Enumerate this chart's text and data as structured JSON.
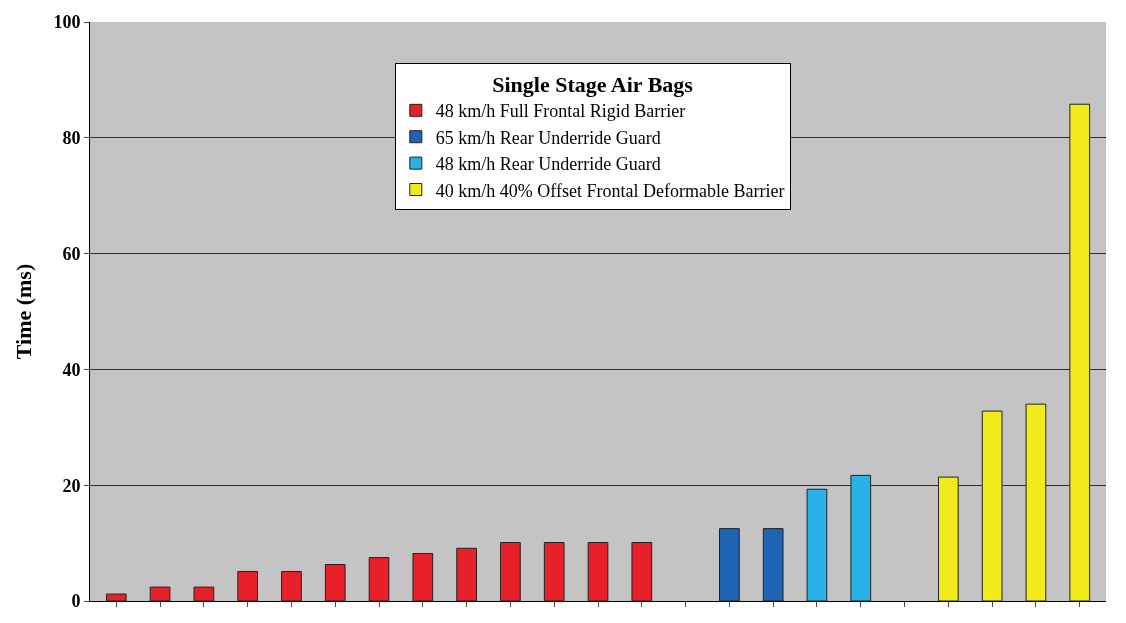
{
  "chart_data": {
    "type": "bar",
    "ylabel": "Time (ms)",
    "legend_title": "Single Stage Air Bags",
    "categories": [
      null,
      null,
      null,
      null,
      null,
      null,
      null,
      null,
      null,
      null,
      null,
      null,
      null,
      null,
      null,
      null,
      null,
      null,
      null,
      null,
      null,
      null,
      null
    ],
    "series": [
      {
        "name": "48 km/h Full Frontal Rigid Barrier",
        "color": "#e8202a",
        "values": [
          1.2,
          2.4,
          2.4,
          5.1,
          5.1,
          6.3,
          7.5,
          8.2,
          9.1,
          10.1,
          10.1,
          10.1,
          10.1,
          null,
          null,
          null,
          null,
          null,
          null,
          null,
          null,
          null,
          null
        ]
      },
      {
        "name": "65 km/h Rear Underride Guard",
        "color": "#1f64b4",
        "values": [
          null,
          null,
          null,
          null,
          null,
          null,
          null,
          null,
          null,
          null,
          null,
          null,
          null,
          null,
          12.5,
          12.5,
          null,
          null,
          null,
          null,
          null,
          null,
          null
        ]
      },
      {
        "name": "48 km/h Rear Underride Guard",
        "color": "#29b2e8",
        "values": [
          null,
          null,
          null,
          null,
          null,
          null,
          null,
          null,
          null,
          null,
          null,
          null,
          null,
          null,
          null,
          null,
          19.3,
          21.7,
          null,
          null,
          null,
          null,
          null
        ]
      },
      {
        "name": "40 km/h 40% Offset Frontal Deformable Barrier",
        "color": "#f2ea1a",
        "values": [
          null,
          null,
          null,
          null,
          null,
          null,
          null,
          null,
          null,
          null,
          null,
          null,
          null,
          null,
          null,
          null,
          null,
          null,
          null,
          21.4,
          32.8,
          34,
          85.8
        ]
      }
    ],
    "ylim": [
      0,
      100
    ],
    "yticks": [
      0,
      20,
      40,
      60,
      80,
      100
    ],
    "grid": "y",
    "legend": "top",
    "tick_labels": "y"
  }
}
